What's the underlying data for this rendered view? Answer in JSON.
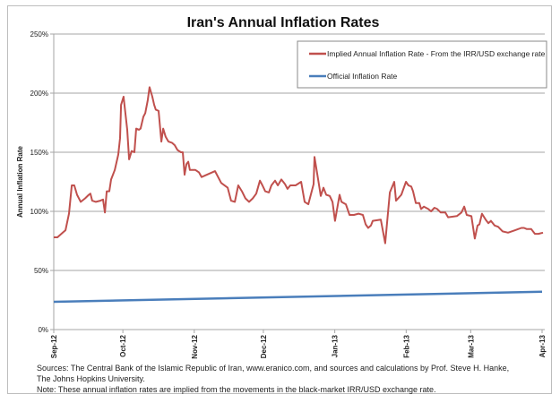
{
  "chart_data": {
    "type": "line",
    "title": "Iran's Annual Inflation Rates",
    "xlabel": "",
    "ylabel": "Annual Inflation Rate",
    "x_unit": "days since 2012-09-01",
    "xlim": [
      0,
      212
    ],
    "ylim": [
      0,
      250
    ],
    "grid": true,
    "legend_position": "top-right",
    "y_ticks": [
      {
        "value": 0,
        "label": "0%"
      },
      {
        "value": 50,
        "label": "50%"
      },
      {
        "value": 100,
        "label": "100%"
      },
      {
        "value": 150,
        "label": "150%"
      },
      {
        "value": 200,
        "label": "200%"
      },
      {
        "value": 250,
        "label": "250%"
      }
    ],
    "x_ticks": [
      {
        "value": 0,
        "label": "Sep-12"
      },
      {
        "value": 30,
        "label": "Oct-12"
      },
      {
        "value": 61,
        "label": "Nov-12"
      },
      {
        "value": 91,
        "label": "Dec-12"
      },
      {
        "value": 122,
        "label": "Jan-13"
      },
      {
        "value": 153,
        "label": "Feb-13"
      },
      {
        "value": 181,
        "label": "Mar-13"
      },
      {
        "value": 212,
        "label": "Apr-13"
      }
    ],
    "series": [
      {
        "name": "Implied Annual Inflation Rate - From the IRR/USD exchange rate",
        "color": "#c0504d",
        "x": [
          0,
          1.6,
          3.9,
          5.1,
          6.6,
          7.8,
          8.9,
          10.1,
          11.7,
          13.6,
          15.2,
          15.9,
          16.7,
          18.3,
          20.2,
          21.4,
          22.2,
          23,
          24.1,
          24.9,
          26.5,
          27.2,
          28,
          28.8,
          29.2,
          30.3,
          31.9,
          32.7,
          33.8,
          35,
          35.8,
          37,
          37.7,
          38.9,
          39.7,
          40.8,
          41.6,
          42.8,
          43.6,
          44.3,
          45.5,
          46.7,
          47.5,
          48.6,
          49.8,
          51.3,
          52.5,
          53.7,
          55.2,
          56,
          56.8,
          57.6,
          58.4,
          59.1,
          61.5,
          63,
          64.2,
          70,
          72.7,
          75.5,
          77,
          78.6,
          80.1,
          81.7,
          83.2,
          84.8,
          86.4,
          87.9,
          89.5,
          90.6,
          91.8,
          93.4,
          94.5,
          96.1,
          97.3,
          98.8,
          100.4,
          101.5,
          102.7,
          105,
          107.4,
          108.9,
          110.5,
          112.8,
          113.2,
          115.1,
          115.9,
          117.1,
          118.3,
          119.8,
          121,
          122.1,
          124.1,
          124.9,
          126.8,
          128.4,
          130.3,
          132.3,
          134.2,
          135.4,
          136.5,
          137.7,
          138.5,
          142,
          143.9,
          145.9,
          147.8,
          148.6,
          150.9,
          152.9,
          154,
          155.2,
          156,
          157.2,
          158.7,
          159.5,
          160.7,
          162.6,
          163.8,
          165.3,
          166.5,
          168,
          170,
          171.2,
          175,
          177,
          178.2,
          179.3,
          181.3,
          182.4,
          182.8,
          184,
          184.8,
          185.9,
          187.5,
          188.7,
          189.8,
          191.4,
          192.9,
          194.9,
          197.2,
          200.3,
          203,
          204.2,
          205.4,
          207.3,
          208.9,
          210.4,
          212.4
        ],
        "values": [
          78,
          78,
          82,
          84,
          98,
          122,
          122,
          114,
          108,
          111,
          114,
          115,
          109,
          108,
          109,
          110,
          99,
          117,
          117,
          127,
          135,
          141,
          148,
          162,
          190,
          197,
          169,
          144,
          151,
          150,
          170,
          169,
          170,
          180,
          183,
          194,
          205,
          197,
          190,
          186,
          185,
          159,
          170,
          163,
          159,
          158,
          156,
          152,
          150,
          150,
          131,
          140,
          142,
          135,
          135,
          133,
          129,
          134,
          124,
          120,
          109,
          108,
          122,
          117,
          111,
          108,
          111,
          115,
          126,
          122,
          117,
          116,
          122,
          126,
          122,
          127,
          123,
          119,
          122,
          122,
          125,
          108,
          106,
          123,
          146,
          123,
          113,
          120,
          114,
          113,
          108,
          92,
          114,
          108,
          106,
          97,
          97,
          98,
          97,
          89,
          86,
          88,
          92,
          93,
          73,
          116,
          125,
          109,
          114,
          125,
          122,
          121,
          117,
          107,
          107,
          102,
          104,
          102,
          100,
          103,
          102,
          99,
          99,
          95,
          96,
          99,
          104,
          97,
          96,
          82,
          77,
          88,
          89,
          98,
          93,
          90,
          92,
          88,
          87,
          83,
          82,
          84,
          86,
          86,
          85,
          85,
          81,
          81,
          82
        ]
      },
      {
        "name": "Official Inflation Rate",
        "color": "#4a7ebb",
        "x": [
          0,
          212
        ],
        "values": [
          23.5,
          32
        ]
      }
    ]
  },
  "notes": {
    "line1": "Sources: The Central Bank of the Islamic Republic of Iran, www.eranico.com, and sources and calculations by Prof. Steve H. Hanke,",
    "line2": "The Johns Hopkins University.",
    "line3": "Note: These annual inflation rates are implied from the movements in the black-market IRR/USD exchange rate."
  }
}
